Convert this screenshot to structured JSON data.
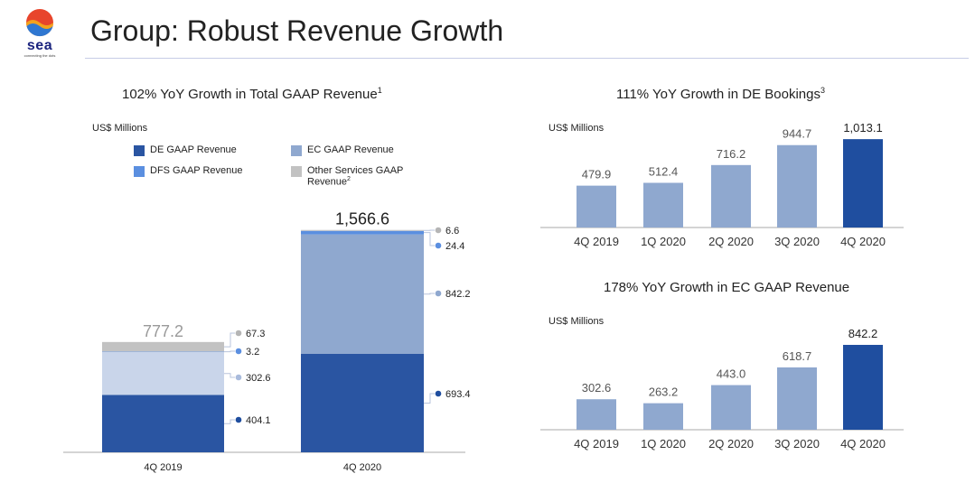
{
  "header": {
    "logo_text": "sea",
    "logo_tagline": "connecting the dots",
    "title": "Group: Robust Revenue Growth"
  },
  "colors": {
    "de": "#2a55a2",
    "ec": "#8fa8cf",
    "dfs": "#5b8fe0",
    "other": "#c2c2c2",
    "ec_2019": "#c9d5ea",
    "highlight_bar": "#1f4e9f",
    "normal_bar": "#8fa8cf",
    "dot_other": "#b5b5b5",
    "dot_dfs": "#5b8fe0",
    "dot_ec": "#8fa8cf",
    "dot_de": "#1f4e9f",
    "dot_ec_2019": "#a9bbdc",
    "connector": "#b8c4dc"
  },
  "chart_data": [
    {
      "type": "bar",
      "stacked": true,
      "title": "102% YoY Growth in Total GAAP Revenue",
      "title_superscript": "1",
      "units": "US$ Millions",
      "categories": [
        "4Q 2019",
        "4Q 2020"
      ],
      "totals": [
        "777.2",
        "1,566.6"
      ],
      "series": [
        {
          "name": "DE GAAP Revenue",
          "values": [
            404.1,
            693.4
          ],
          "labels": [
            "404.1",
            "693.4"
          ]
        },
        {
          "name": "EC GAAP Revenue",
          "values": [
            302.6,
            842.2
          ],
          "labels": [
            "302.6",
            "842.2"
          ]
        },
        {
          "name": "DFS GAAP Revenue",
          "values": [
            3.2,
            24.4
          ],
          "labels": [
            "3.2",
            "24.4"
          ]
        },
        {
          "name": "Other Services GAAP Revenue",
          "name_superscript": "2",
          "values": [
            67.3,
            6.6
          ],
          "labels": [
            "67.3",
            "6.6"
          ]
        }
      ],
      "legend": [
        {
          "label": "DE GAAP Revenue",
          "sup": "",
          "color_key": "de"
        },
        {
          "label": "EC GAAP Revenue",
          "sup": "",
          "color_key": "ec"
        },
        {
          "label": "DFS GAAP Revenue",
          "sup": "",
          "color_key": "dfs"
        },
        {
          "label": "Other Services GAAP Revenue",
          "sup": "2",
          "color_key": "other"
        }
      ],
      "legend_placement": "top-left"
    },
    {
      "type": "bar",
      "title": "111% YoY Growth in DE Bookings",
      "title_superscript": "3",
      "units": "US$ Millions",
      "categories": [
        "4Q 2019",
        "1Q 2020",
        "2Q 2020",
        "3Q 2020",
        "4Q 2020"
      ],
      "values": [
        479.9,
        512.4,
        716.2,
        944.7,
        1013.1
      ],
      "labels": [
        "479.9",
        "512.4",
        "716.2",
        "944.7",
        "1,013.1"
      ]
    },
    {
      "type": "bar",
      "title": "178% YoY Growth in EC GAAP Revenue",
      "title_superscript": "",
      "units": "US$ Millions",
      "categories": [
        "4Q 2019",
        "1Q 2020",
        "2Q 2020",
        "3Q 2020",
        "4Q 2020"
      ],
      "values": [
        302.6,
        263.2,
        443.0,
        618.7,
        842.2
      ],
      "labels": [
        "302.6",
        "263.2",
        "443.0",
        "618.7",
        "842.2"
      ]
    }
  ]
}
